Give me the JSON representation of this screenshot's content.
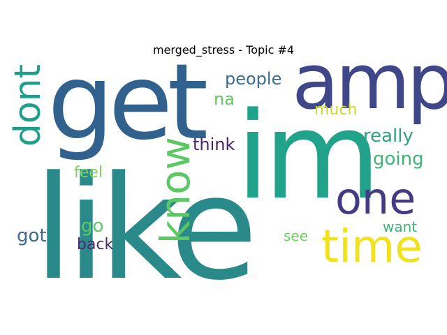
{
  "title": "merged_stress - Topic #4",
  "words": {
    "like": {
      "text": "like",
      "color": "#2a8a8a"
    },
    "get": {
      "text": "get",
      "color": "#31618d"
    },
    "im": {
      "text": "im",
      "color": "#21a28a"
    },
    "amp": {
      "text": "amp",
      "color": "#3f4788"
    },
    "time": {
      "text": "time",
      "color": "#f0e21e"
    },
    "one": {
      "text": "one",
      "color": "#433c84"
    },
    "know": {
      "text": "know",
      "color": "#5cc863"
    },
    "dont": {
      "text": "dont",
      "color": "#1f9e89"
    },
    "really": {
      "text": "really",
      "color": "#2ea47e"
    },
    "going": {
      "text": "going",
      "color": "#3fb47a"
    },
    "people": {
      "text": "people",
      "color": "#3b6c8e"
    },
    "think": {
      "text": "think",
      "color": "#48256f"
    },
    "na": {
      "text": "na",
      "color": "#60c860"
    },
    "much": {
      "text": "much",
      "color": "#c7dd2a"
    },
    "feel": {
      "text": "feel",
      "color": "#7fd25a"
    },
    "go": {
      "text": "go",
      "color": "#5ec765"
    },
    "got": {
      "text": "got",
      "color": "#3d6a8e"
    },
    "back": {
      "text": "back",
      "color": "#4b2a73"
    },
    "want": {
      "text": "want",
      "color": "#3fb67a"
    },
    "see": {
      "text": "see",
      "color": "#6bcf62"
    }
  }
}
